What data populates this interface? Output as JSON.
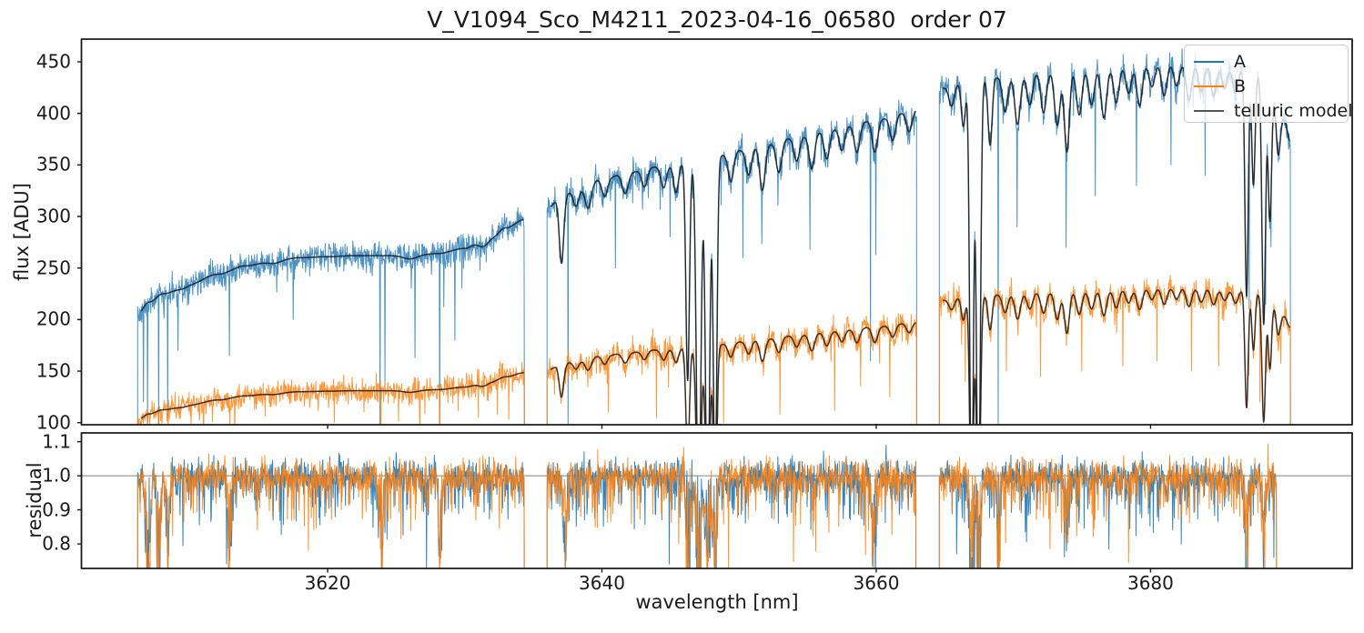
{
  "chart_data": [
    {
      "id": "flux-panel",
      "type": "line",
      "title": "V_V1094_Sco_M4211_2023-04-16_06580  order 07",
      "ylabel": "flux [ADU]",
      "xlim": [
        3602.05,
        3694.7
      ],
      "ylim": [
        98,
        472
      ],
      "yticks": [
        450,
        400,
        350,
        300,
        250,
        200,
        150,
        100
      ],
      "ytick_labels": [
        "450",
        "400",
        "350",
        "300",
        "250",
        "200",
        "150",
        "100"
      ],
      "xticks": [
        3620,
        3640,
        3660,
        3680
      ],
      "xtick_labels": [
        "3620",
        "3640",
        "3660",
        "3680"
      ],
      "grid": false,
      "legend_position": "upper right",
      "legend": [
        {
          "label": "A",
          "color": "#1f77b4"
        },
        {
          "label": "B",
          "color": "#ff7f0e"
        },
        {
          "label": "telluric model",
          "color": "#555555"
        }
      ],
      "colors": {
        "A": "#1f77b4",
        "B": "#ff7f0e",
        "model": "#17171c",
        "spine": "#1b1b1b"
      },
      "noise": {
        "sigma_A": 6.5,
        "sigma_B": 6.0,
        "down_spike_prob": 0.05,
        "down_spike_amp": 48
      },
      "segments": [
        {
          "range": [
            3606.15,
            3634.35
          ],
          "b_ratio": 0.5,
          "continuum_A": [
            [
              3606.15,
              206
            ],
            [
              3607,
              217
            ],
            [
              3608,
              225
            ],
            [
              3610,
              235
            ],
            [
              3612,
              244
            ],
            [
              3614,
              252
            ],
            [
              3616,
              257
            ],
            [
              3618,
              260
            ],
            [
              3620,
              261
            ],
            [
              3622,
              262
            ],
            [
              3624,
              262
            ],
            [
              3626,
              262
            ],
            [
              3628,
              264
            ],
            [
              3630,
              269
            ],
            [
              3631,
              274
            ],
            [
              3632,
              281
            ],
            [
              3633,
              289
            ],
            [
              3634.35,
              297
            ]
          ],
          "telluric_lines": [
            [
              3609.5,
              0.015,
              0.4
            ],
            [
              3616.0,
              0.01,
              0.5
            ],
            [
              3626.0,
              0.012,
              0.5
            ],
            [
              3631.5,
              0.02,
              0.4
            ]
          ],
          "deep_spikes_A": [
            [
              3606.6,
              120
            ],
            [
              3606.9,
              98
            ],
            [
              3607.7,
              88
            ],
            [
              3608.35,
              105
            ],
            [
              3609.1,
              170
            ],
            [
              3612.85,
              165
            ],
            [
              3617.5,
              200
            ],
            [
              3623.85,
              88
            ],
            [
              3624.2,
              140
            ],
            [
              3626.4,
              163
            ],
            [
              3628.2,
              88
            ],
            [
              3629.3,
              180
            ]
          ],
          "deep_spikes_B": [
            [
              3607.7,
              78
            ],
            [
              3608.4,
              85
            ],
            [
              3612.9,
              95
            ],
            [
              3620.5,
              100
            ],
            [
              3623.9,
              78
            ],
            [
              3628.2,
              85
            ],
            [
              3631.0,
              105
            ]
          ]
        },
        {
          "range": [
            3636.0,
            3662.95
          ],
          "b_ratio": 0.49,
          "continuum_A": [
            [
              3636,
              308
            ],
            [
              3637,
              318
            ],
            [
              3638,
              326
            ],
            [
              3640,
              336
            ],
            [
              3642,
              343
            ],
            [
              3644,
              348
            ],
            [
              3646,
              352
            ],
            [
              3648,
              357
            ],
            [
              3650,
              364
            ],
            [
              3652,
              370
            ],
            [
              3654,
              376
            ],
            [
              3656,
              382
            ],
            [
              3658,
              388
            ],
            [
              3660,
              394
            ],
            [
              3662.95,
              403
            ]
          ],
          "telluric_lines": [
            [
              3637.05,
              0.2,
              0.16
            ],
            [
              3638.1,
              0.05,
              0.2
            ],
            [
              3639.0,
              0.07,
              0.22
            ],
            [
              3640.2,
              0.05,
              0.2
            ],
            [
              3641.7,
              0.06,
              0.22
            ],
            [
              3643.1,
              0.05,
              0.2
            ],
            [
              3644.5,
              0.06,
              0.2
            ],
            [
              3645.4,
              0.08,
              0.18
            ],
            [
              3646.25,
              0.6,
              0.13
            ],
            [
              3647.05,
              1.0,
              0.16
            ],
            [
              3647.7,
              1.0,
              0.15
            ],
            [
              3648.25,
              0.9,
              0.13
            ],
            [
              3649.4,
              0.08,
              0.2
            ],
            [
              3650.7,
              0.07,
              0.2
            ],
            [
              3651.7,
              0.12,
              0.2
            ],
            [
              3652.9,
              0.08,
              0.2
            ],
            [
              3654.2,
              0.06,
              0.2
            ],
            [
              3655.3,
              0.09,
              0.2
            ],
            [
              3656.4,
              0.07,
              0.2
            ],
            [
              3657.5,
              0.06,
              0.2
            ],
            [
              3658.6,
              0.07,
              0.2
            ],
            [
              3659.9,
              0.08,
              0.2
            ],
            [
              3661.2,
              0.06,
              0.2
            ],
            [
              3662.4,
              0.05,
              0.2
            ]
          ],
          "deep_spikes_A": [
            [
              3637.55,
              88
            ],
            [
              3641.0,
              250
            ],
            [
              3645.0,
              280
            ],
            [
              3650.3,
              260
            ],
            [
              3655.2,
              268
            ],
            [
              3659.6,
              160
            ],
            [
              3660.0,
              263
            ]
          ],
          "deep_spikes_B": [
            [
              3640.5,
              110
            ],
            [
              3644.0,
              105
            ],
            [
              3648.9,
              100
            ],
            [
              3653.0,
              108
            ],
            [
              3657.0,
              112
            ],
            [
              3661.0,
              125
            ]
          ]
        },
        {
          "range": [
            3664.6,
            3690.2
          ],
          "b_ratio": 0.515,
          "continuum_A": [
            [
              3664.6,
              424
            ],
            [
              3666,
              430
            ],
            [
              3668,
              434
            ],
            [
              3670,
              437
            ],
            [
              3672,
              440
            ],
            [
              3674,
              442
            ],
            [
              3676,
              444
            ],
            [
              3678,
              446
            ],
            [
              3680,
              448
            ],
            [
              3682,
              449
            ],
            [
              3684,
              448
            ],
            [
              3686,
              446
            ],
            [
              3687,
              444
            ],
            [
              3688,
              437
            ],
            [
              3689,
              418
            ],
            [
              3689.7,
              395
            ],
            [
              3690.2,
              373
            ]
          ],
          "telluric_lines": [
            [
              3665.5,
              0.05,
              0.2
            ],
            [
              3666.35,
              0.1,
              0.15
            ],
            [
              3666.95,
              1.0,
              0.13
            ],
            [
              3667.45,
              1.0,
              0.14
            ],
            [
              3668.3,
              0.15,
              0.15
            ],
            [
              3669.4,
              0.08,
              0.2
            ],
            [
              3670.3,
              0.11,
              0.2
            ],
            [
              3671.2,
              0.07,
              0.2
            ],
            [
              3672.2,
              0.09,
              0.2
            ],
            [
              3673.2,
              0.12,
              0.2
            ],
            [
              3673.9,
              0.18,
              0.18
            ],
            [
              3674.8,
              0.1,
              0.2
            ],
            [
              3675.7,
              0.08,
              0.2
            ],
            [
              3676.6,
              0.11,
              0.2
            ],
            [
              3677.5,
              0.08,
              0.2
            ],
            [
              3678.4,
              0.06,
              0.2
            ],
            [
              3679.2,
              0.09,
              0.2
            ],
            [
              3680.1,
              0.05,
              0.2
            ],
            [
              3681.0,
              0.07,
              0.2
            ],
            [
              3681.9,
              0.05,
              0.2
            ],
            [
              3682.8,
              0.08,
              0.2
            ],
            [
              3683.7,
              0.06,
              0.2
            ],
            [
              3684.6,
              0.07,
              0.2
            ],
            [
              3685.4,
              0.05,
              0.2
            ],
            [
              3686.2,
              0.06,
              0.2
            ],
            [
              3687.0,
              0.5,
              0.12
            ],
            [
              3687.5,
              0.25,
              0.12
            ],
            [
              3688.25,
              0.55,
              0.13
            ],
            [
              3688.7,
              0.3,
              0.12
            ],
            [
              3689.3,
              0.12,
              0.15
            ]
          ],
          "deep_spikes_A": [
            [
              3668.9,
              88
            ],
            [
              3670.3,
              290
            ],
            [
              3673.85,
              270
            ],
            [
              3676.0,
              320
            ],
            [
              3679.0,
              330
            ],
            [
              3681.5,
              350
            ],
            [
              3684.0,
              340
            ],
            [
              3687.2,
              210
            ],
            [
              3688.4,
              215
            ]
          ],
          "deep_spikes_B": [
            [
              3666.5,
              140
            ],
            [
              3669.5,
              150
            ],
            [
              3672.0,
              145
            ],
            [
              3675.0,
              150
            ],
            [
              3678.0,
              155
            ],
            [
              3680.5,
              160
            ],
            [
              3683.0,
              150
            ],
            [
              3685.0,
              155
            ],
            [
              3688.0,
              120
            ]
          ]
        }
      ]
    },
    {
      "id": "residual-panel",
      "type": "line",
      "ylabel": "residual",
      "xlabel": "wavelength [nm]",
      "baseline": 1.0,
      "ylim": [
        0.728,
        1.126
      ],
      "yticks": [
        1.1,
        1.0,
        0.9,
        0.8
      ],
      "ytick_labels": [
        "1.1",
        "1.0",
        "0.9",
        "0.8"
      ],
      "noise_sigma": 0.023,
      "series": [
        {
          "name": "A",
          "color": "#1f77b4"
        },
        {
          "name": "B",
          "color": "#ff7f0e"
        }
      ],
      "segments": [
        [
          3606.15,
          3634.35
        ],
        [
          3636.0,
          3662.9
        ],
        [
          3664.6,
          3689.2
        ]
      ],
      "heavy_zones": [
        [
          3606.9,
          0.15,
          0.45
        ],
        [
          3607.7,
          0.12,
          0.5
        ],
        [
          3608.35,
          0.12,
          0.4
        ],
        [
          3612.85,
          0.1,
          0.35
        ],
        [
          3623.9,
          0.12,
          0.4
        ],
        [
          3628.2,
          0.1,
          0.4
        ],
        [
          3637.3,
          0.15,
          0.3
        ],
        [
          3646.3,
          0.14,
          0.45
        ],
        [
          3647.05,
          0.16,
          0.5
        ],
        [
          3647.7,
          0.15,
          0.5
        ],
        [
          3648.25,
          0.13,
          0.45
        ],
        [
          3659.8,
          0.12,
          0.3
        ],
        [
          3666.95,
          0.14,
          0.5
        ],
        [
          3667.45,
          0.14,
          0.5
        ],
        [
          3668.9,
          0.1,
          0.35
        ],
        [
          3673.9,
          0.15,
          0.25
        ],
        [
          3687.0,
          0.13,
          0.35
        ],
        [
          3688.25,
          0.13,
          0.35
        ]
      ]
    }
  ]
}
